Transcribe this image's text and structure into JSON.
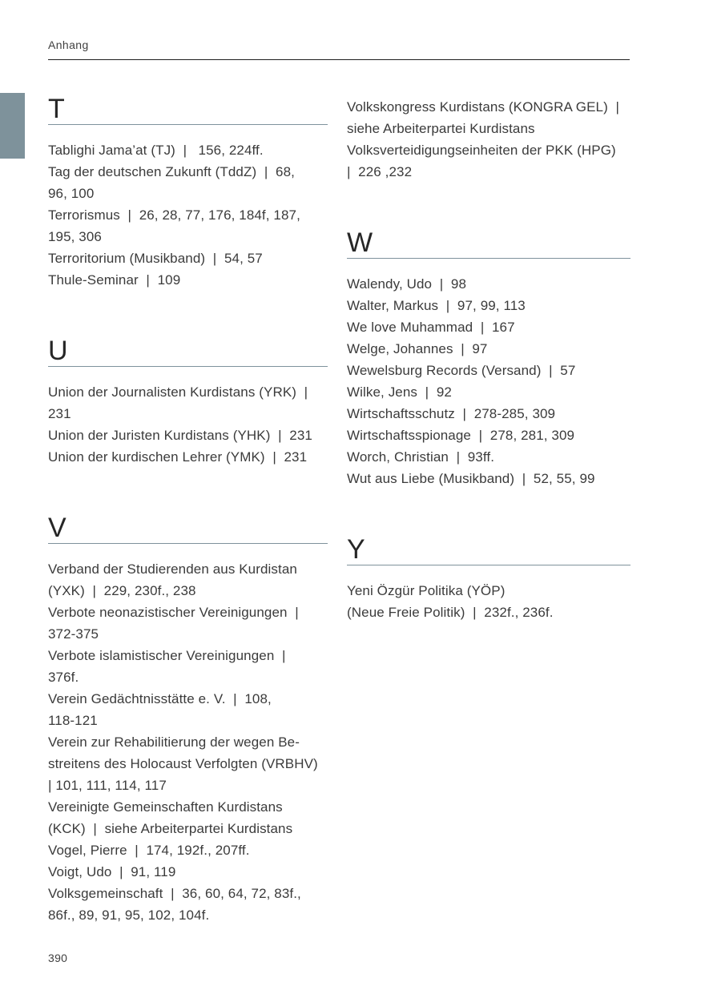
{
  "page": {
    "running_head": "Anhang",
    "page_number": "390"
  },
  "sections": {
    "left": [
      {
        "letter": "T",
        "entries": [
          "Tablighi Jama’at (TJ)  |   156, 224ff.",
          "Tag der deutschen Zukunft (TddZ)  |  68,\n96, 100",
          "Terrorismus  |  26, 28, 77, 176, 184f, 187,\n195, 306",
          "Terroritorium (Musikband)  |  54, 57",
          "Thule-Seminar  |  109"
        ]
      },
      {
        "letter": "U",
        "entries": [
          "Union der Journalisten Kurdistans (YRK)  |\n231",
          "Union der Juristen Kurdistans (YHK)  |  231",
          "Union der kurdischen Lehrer (YMK)  |  231"
        ]
      },
      {
        "letter": "V",
        "entries": [
          "Verband der Studierenden aus Kurdistan\n(YXK)  |  229, 230f., 238",
          "Verbote neonazistischer Vereinigungen  |\n372-375",
          "Verbote islamistischer Vereinigungen  |\n376f.",
          "Verein Gedächtnisstätte e. V.  |  108,\n118-121",
          "Verein zur Rehabilitierung der wegen Be-\nstreitens des Holocaust Verfolgten (VRBHV)\n| 101, 111, 114, 117",
          "Vereinigte Gemeinschaften Kurdistans\n(KCK)  |  siehe Arbeiterpartei Kurdistans",
          "Vogel, Pierre  |  174, 192f., 207ff.",
          "Voigt, Udo  |  91, 119",
          "Volksgemeinschaft  |  36, 60, 64, 72, 83f.,\n86f., 89, 91, 95, 102, 104f."
        ]
      }
    ],
    "right": [
      {
        "letter": "",
        "entries": [
          "Volkskongress Kurdistans (KONGRA GEL)  |\nsiehe Arbeiterpartei Kurdistans",
          "Volksverteidigungseinheiten der PKK (HPG)\n|  226 ,232"
        ]
      },
      {
        "letter": "W",
        "entries": [
          "Walendy, Udo  |  98",
          "Walter, Markus  |  97, 99, 113",
          "We love Muhammad  |  167",
          "Welge, Johannes  |  97",
          "Wewelsburg Records (Versand)  |  57",
          "Wilke, Jens  |  92",
          "Wirtschaftsschutz  |  278-285, 309",
          "Wirtschaftsspionage  |  278, 281, 309",
          "Worch, Christian  |  93ff.",
          "Wut aus Liebe (Musikband)  |  52, 55, 99"
        ]
      },
      {
        "letter": "Y",
        "entries": [
          "Yeni Özgür Politika (YÖP)\n(Neue Freie Politik)  |  232f., 236f."
        ]
      }
    ]
  }
}
